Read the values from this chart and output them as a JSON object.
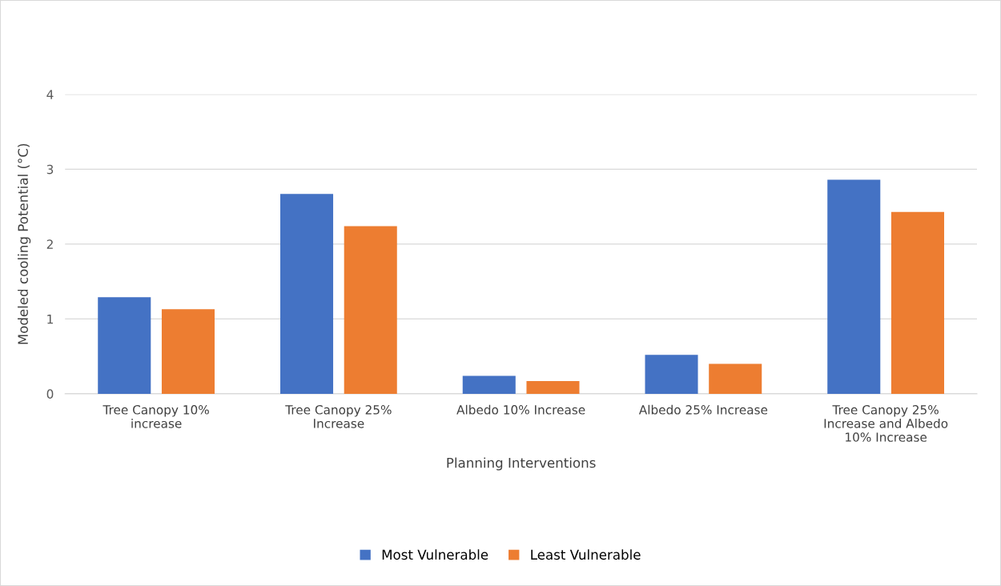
{
  "chart_data": {
    "type": "bar",
    "xlabel": "Planning Interventions",
    "ylabel": "Modeled cooling Potential (°C)",
    "categories": [
      "Tree Canopy 10%\nincrease",
      "Tree Canopy 25%\nIncrease",
      "Albedo 10% Increase",
      "Albedo 25% Increase",
      "Tree Canopy 25%\nIncrease and Albedo\n10% Increase"
    ],
    "series": [
      {
        "name": "Most Vulnerable",
        "color": "#4472c4",
        "values": [
          1.29,
          2.67,
          0.24,
          0.52,
          2.86
        ]
      },
      {
        "name": "Least Vulnerable",
        "color": "#ed7d31",
        "values": [
          1.13,
          2.24,
          0.17,
          0.4,
          2.43
        ]
      }
    ],
    "ylim": [
      0,
      4
    ],
    "yticks": [
      0,
      1,
      2,
      3,
      4
    ],
    "grid": "y",
    "legend": "bottom"
  }
}
